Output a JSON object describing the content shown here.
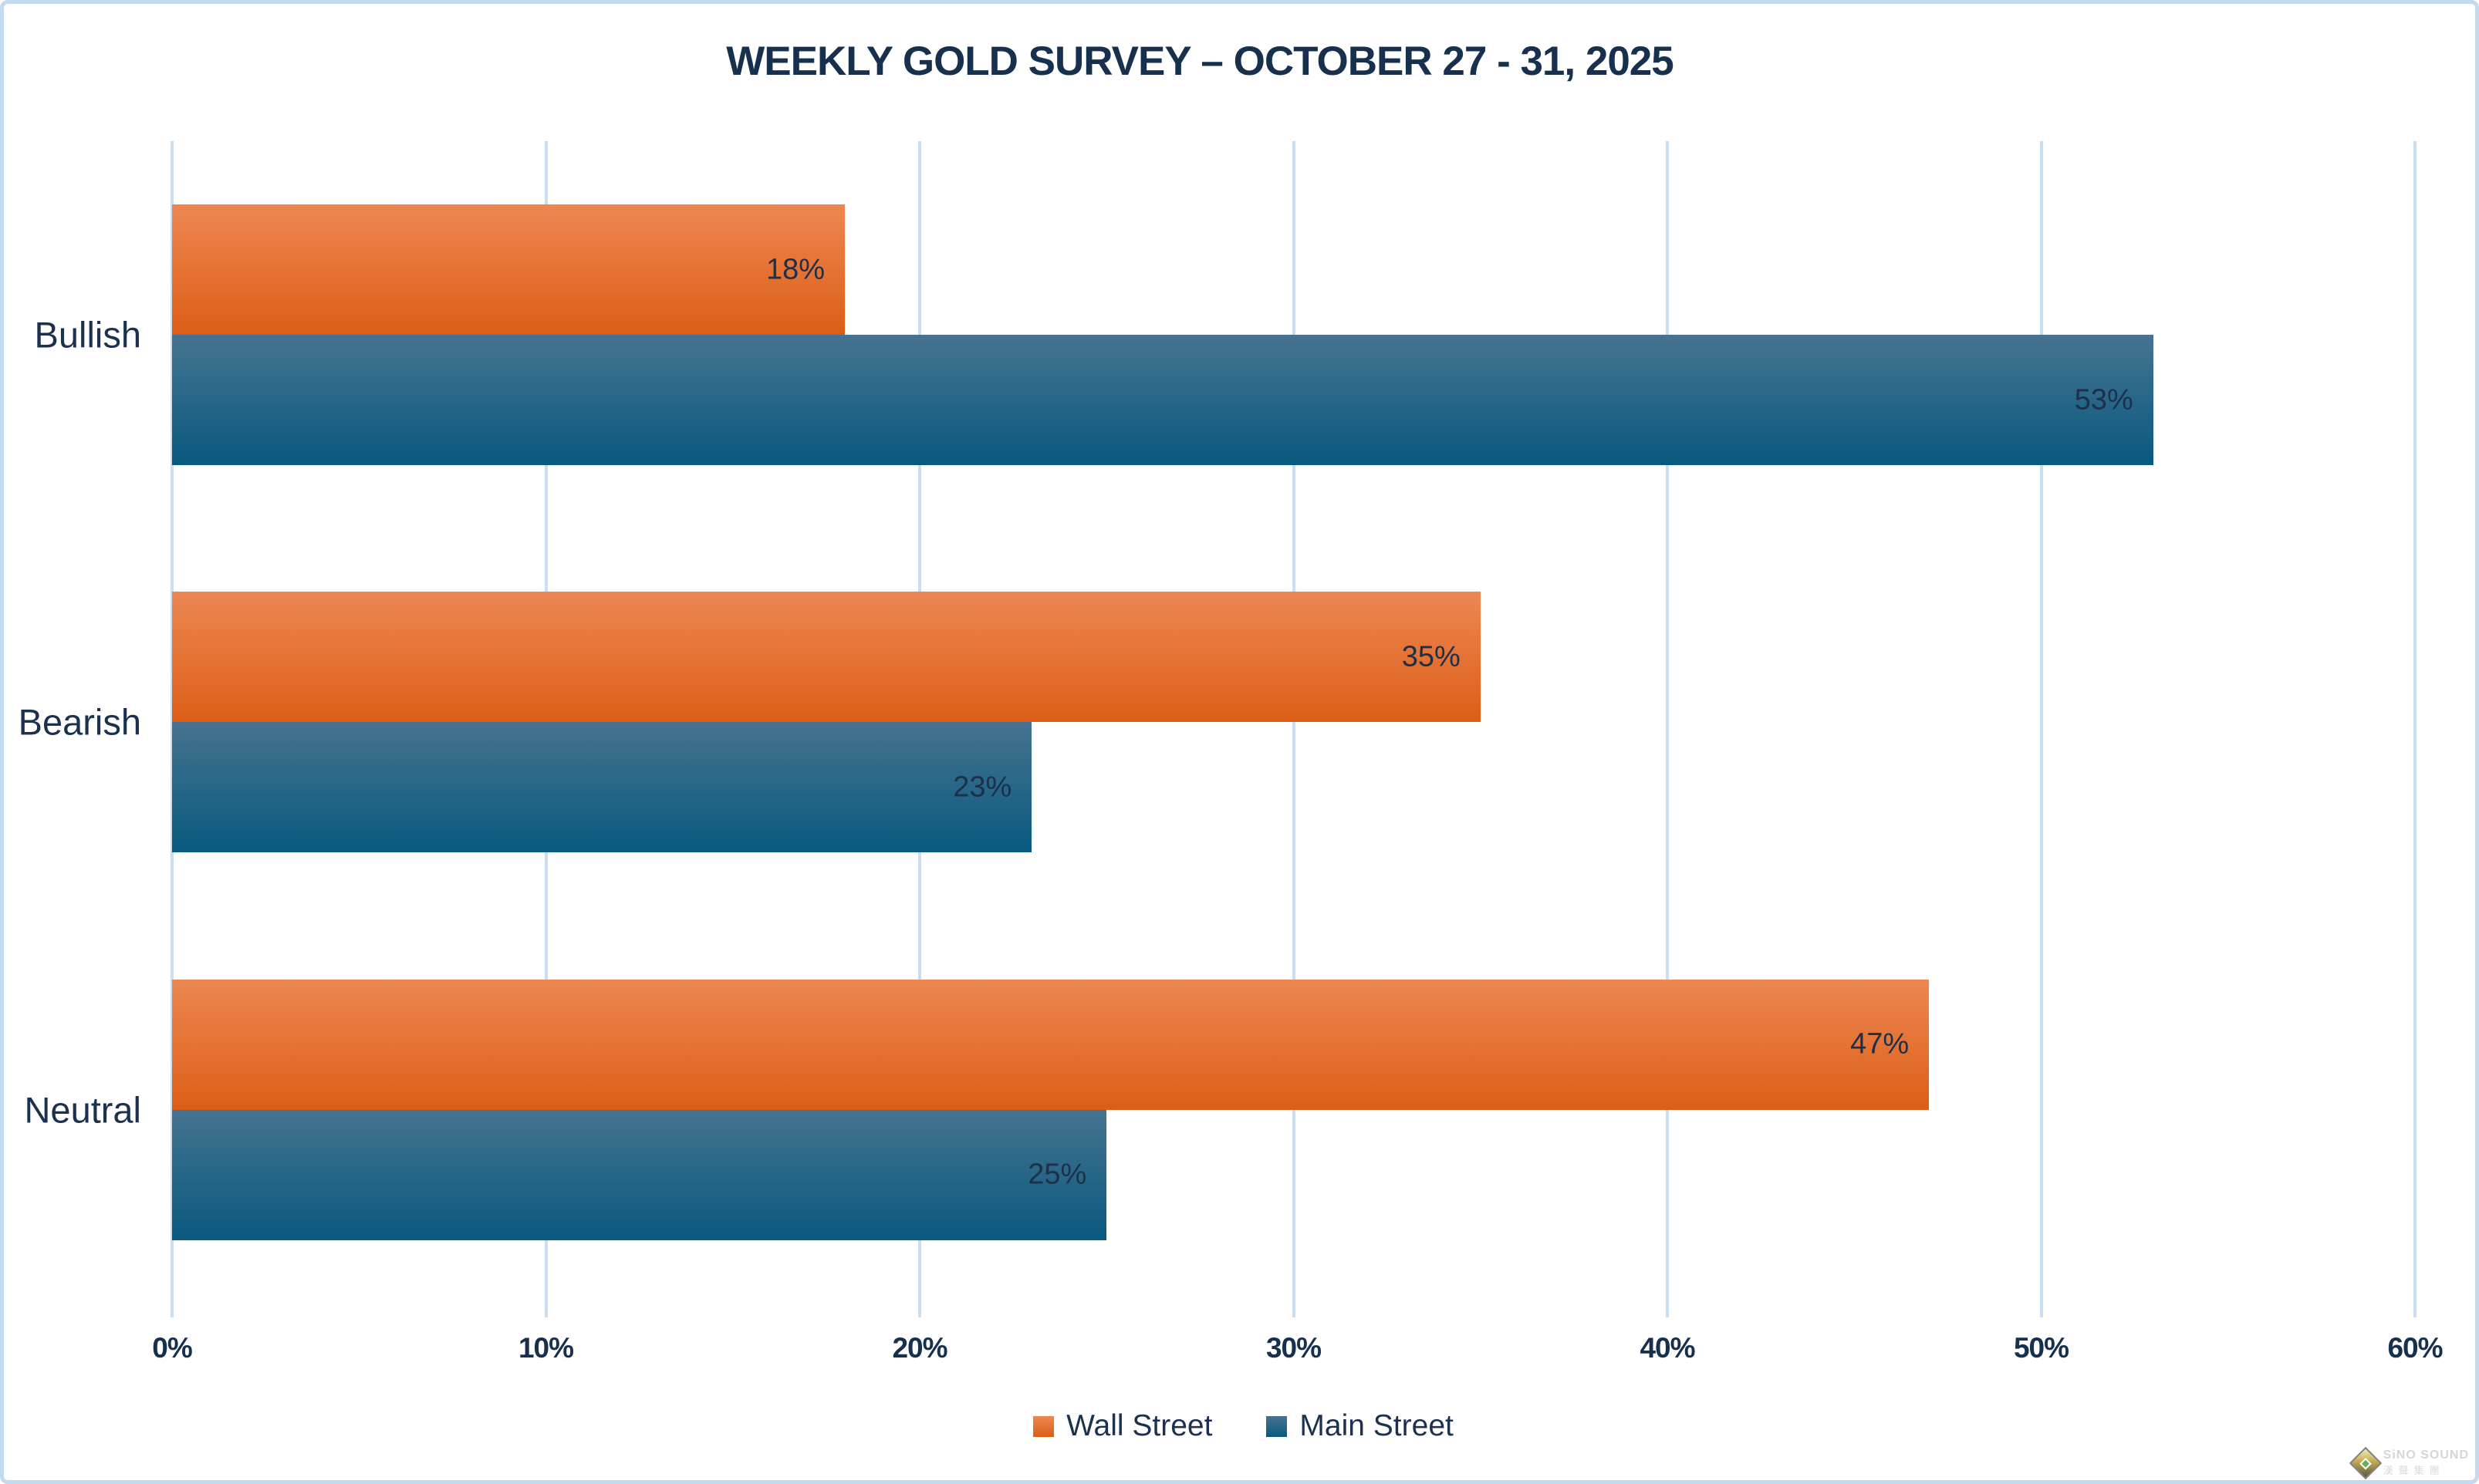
{
  "chart_data": {
    "type": "bar",
    "orientation": "horizontal",
    "title": "WEEKLY GOLD SURVEY – OCTOBER 27 - 31, 2025",
    "categories": [
      "Bullish",
      "Bearish",
      "Neutral"
    ],
    "series": [
      {
        "name": "Wall Street",
        "values": [
          18,
          35,
          47
        ],
        "color_top": "#ed8753",
        "color_bottom": "#dc5e16"
      },
      {
        "name": "Main Street",
        "values": [
          53,
          23,
          25
        ],
        "color_top": "#467390",
        "color_bottom": "#08597f"
      }
    ],
    "value_suffix": "%",
    "xlim": [
      0,
      60
    ],
    "x_ticks": [
      "0%",
      "10%",
      "20%",
      "30%",
      "40%",
      "50%",
      "60%"
    ],
    "grid": true,
    "legend_position": "bottom"
  },
  "colors": {
    "title_text": "#16304e",
    "label_text": "#1d3049",
    "gridline": "#cadef2",
    "frame_border": "#c3d9ee",
    "background": "#ffffff"
  },
  "watermark": {
    "line1": "SiNO SOUND",
    "line2": "漢聲集團"
  }
}
